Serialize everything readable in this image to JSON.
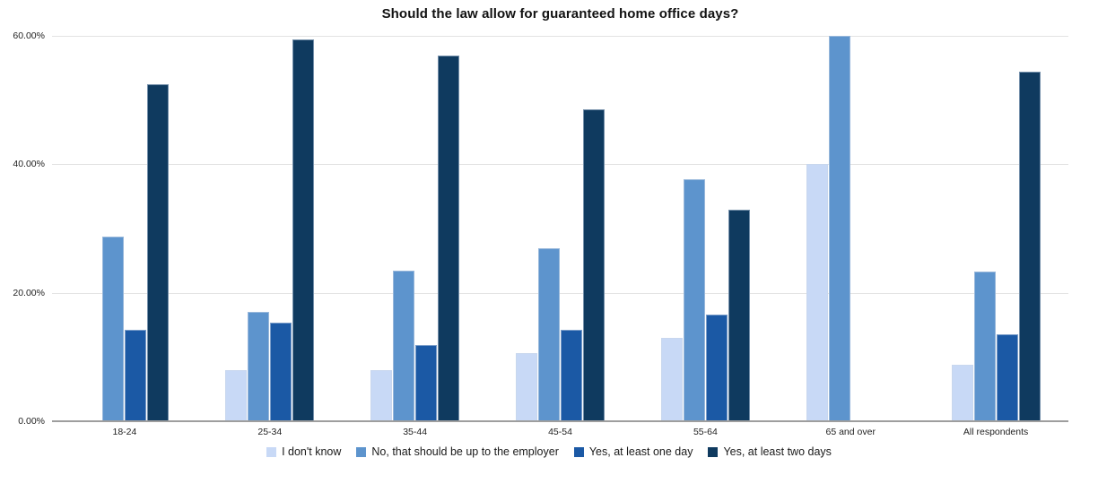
{
  "title": "Should the law allow for guaranteed home office days?",
  "colors": {
    "series_dont_know": "#c8d9f6",
    "series_no_employer": "#5d94cd",
    "series_yes_one_day": "#1b59a5",
    "series_yes_two_days": "#0f3a5f",
    "gridline": "#e3e3e3",
    "baseline": "#9e9e9e",
    "text": "#222222",
    "title_text": "#111111"
  },
  "chart_data": {
    "type": "bar",
    "title": "Should the law allow for guaranteed home office days?",
    "categories": [
      "18-24",
      "25-34",
      "35-44",
      "45-54",
      "55-64",
      "65 and over",
      "All respondents"
    ],
    "series": [
      {
        "name": "I don't know",
        "color": "#c8d9f6",
        "values": [
          0,
          7.9,
          8.0,
          10.6,
          13.0,
          40.0,
          8.8
        ]
      },
      {
        "name": "No, that should be up to the employer",
        "color": "#5d94cd",
        "values": [
          28.7,
          17.0,
          23.4,
          27.0,
          37.7,
          60.0,
          23.3
        ]
      },
      {
        "name": "Yes, at least one day",
        "color": "#1b59a5",
        "values": [
          14.3,
          15.3,
          11.9,
          14.2,
          16.6,
          0,
          13.6
        ]
      },
      {
        "name": "Yes, at least two days",
        "color": "#0f3a5f",
        "values": [
          52.4,
          59.5,
          56.9,
          48.5,
          32.9,
          0,
          54.4
        ]
      }
    ],
    "xlabel": "",
    "ylabel": "",
    "ylim": [
      0,
      60
    ],
    "yticks": [
      {
        "label": "0.00%",
        "value": 0
      },
      {
        "label": "20.00%",
        "value": 20
      },
      {
        "label": "40.00%",
        "value": 40
      },
      {
        "label": "60.00%",
        "value": 60
      }
    ],
    "grid": true,
    "legend_position": "bottom"
  }
}
